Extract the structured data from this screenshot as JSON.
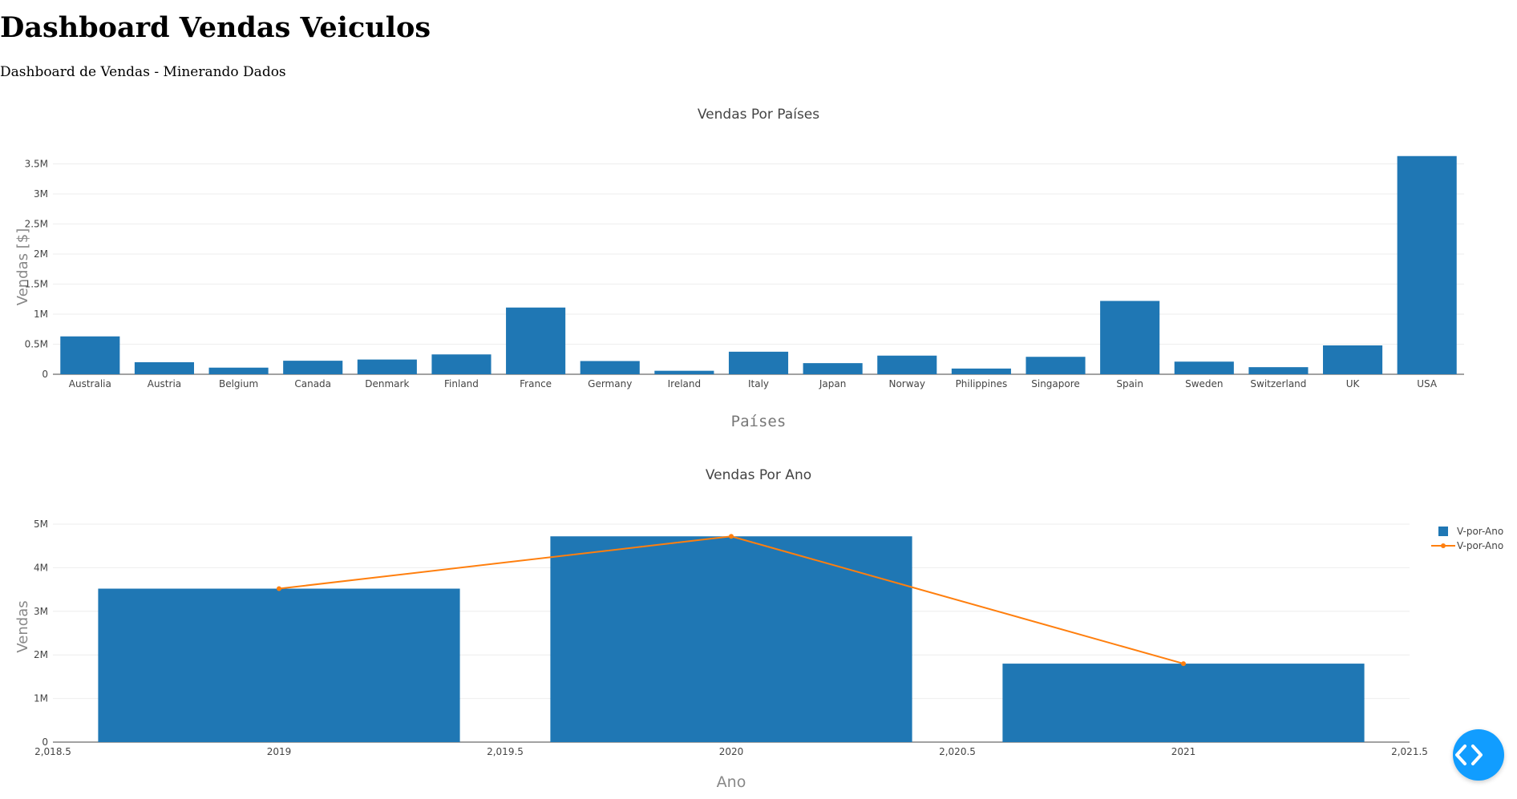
{
  "page": {
    "title": "Dashboard Vendas Veiculos",
    "subtitle": "Dashboard de Vendas - Minerando Dados"
  },
  "colors": {
    "bar": "#1f77b4",
    "line": "#ff7f0e",
    "grid": "#eeeeee",
    "debug_button": "#119dff"
  },
  "icons": {
    "debug": "code-brackets-icon"
  },
  "chart_data": [
    {
      "type": "bar",
      "title": "Vendas Por Países",
      "xlabel": "Países",
      "ylabel": "Vendas [$]",
      "categories": [
        "Australia",
        "Austria",
        "Belgium",
        "Canada",
        "Denmark",
        "Finland",
        "France",
        "Germany",
        "Ireland",
        "Italy",
        "Japan",
        "Norway",
        "Philippines",
        "Singapore",
        "Spain",
        "Sweden",
        "Switzerland",
        "UK",
        "USA"
      ],
      "values": [
        630000,
        200000,
        110000,
        225000,
        245000,
        330000,
        1110000,
        220000,
        58000,
        375000,
        185000,
        310000,
        95000,
        290000,
        1220000,
        210000,
        118000,
        480000,
        3630000
      ],
      "ylim": [
        0,
        3800000
      ],
      "yticks": [
        0,
        500000,
        1000000,
        1500000,
        2000000,
        2500000,
        3000000,
        3500000
      ],
      "ytick_labels": [
        "0",
        "0.5M",
        "1M",
        "1.5M",
        "2M",
        "2.5M",
        "3M",
        "3.5M"
      ],
      "grid": true,
      "legend": "none"
    },
    {
      "type": "bar",
      "title": "Vendas Por Ano",
      "xlabel": "Ano",
      "ylabel": "Vendas",
      "x": [
        2019,
        2020,
        2021
      ],
      "series": [
        {
          "name": "V-por-Ano",
          "type": "bar",
          "values": [
            3520000,
            4720000,
            1800000
          ]
        },
        {
          "name": "V-por-Ano",
          "type": "line",
          "values": [
            3520000,
            4720000,
            1800000
          ]
        }
      ],
      "xlim": [
        2018.5,
        2021.5
      ],
      "xticks": [
        2018.5,
        2019,
        2019.5,
        2020,
        2020.5,
        2021,
        2021.5
      ],
      "xtick_labels": [
        "2,018.5",
        "2019",
        "2,019.5",
        "2020",
        "2,020.5",
        "2021",
        "2,021.5"
      ],
      "ylim": [
        0,
        5000000
      ],
      "yticks": [
        0,
        1000000,
        2000000,
        3000000,
        4000000,
        5000000
      ],
      "ytick_labels": [
        "0",
        "1M",
        "2M",
        "3M",
        "4M",
        "5M"
      ],
      "grid": true,
      "legend": "top-right"
    }
  ]
}
